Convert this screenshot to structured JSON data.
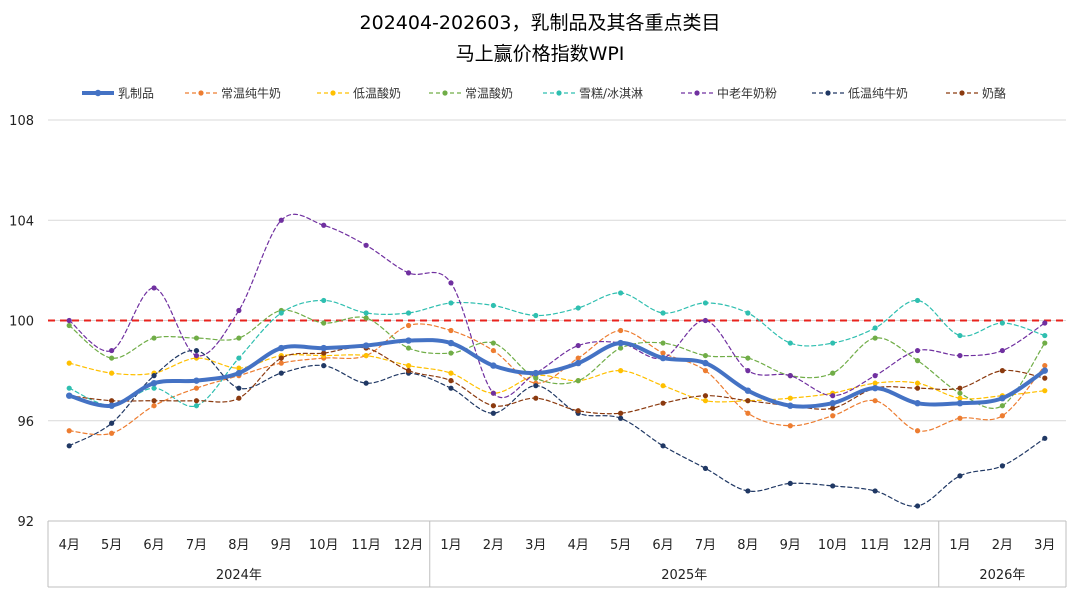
{
  "chart_data": {
    "type": "line",
    "title": "202404-202603，乳制品及其各重点类目",
    "subtitle": "马上赢价格指数WPI",
    "categories": [
      "4月",
      "5月",
      "6月",
      "7月",
      "8月",
      "9月",
      "10月",
      "11月",
      "12月",
      "1月",
      "2月",
      "3月",
      "4月",
      "5月",
      "6月",
      "7月",
      "8月",
      "9月",
      "10月",
      "11月",
      "12月",
      "1月",
      "2月",
      "3月"
    ],
    "year_groups": [
      {
        "label": "2024年",
        "count": 9
      },
      {
        "label": "2025年",
        "count": 12
      },
      {
        "label": "2026年",
        "count": 3
      }
    ],
    "ylim": [
      92,
      108
    ],
    "yticks": [
      "92",
      "96",
      "100",
      "104",
      "108"
    ],
    "reference_line": {
      "value": 100,
      "color": "#e8231d"
    },
    "grid": true,
    "legend_position": "top",
    "series": [
      {
        "name": "乳制品",
        "color": "#4472c4",
        "main": true,
        "values": [
          97.0,
          96.6,
          97.5,
          97.6,
          97.9,
          98.9,
          98.9,
          99.0,
          99.2,
          99.1,
          98.2,
          97.9,
          98.3,
          99.1,
          98.5,
          98.3,
          97.2,
          96.6,
          96.7,
          97.3,
          96.7,
          96.7,
          96.9,
          98.0
        ]
      },
      {
        "name": "常温纯牛奶",
        "color": "#ed7d31",
        "values": [
          95.6,
          95.5,
          96.6,
          97.3,
          97.8,
          98.3,
          98.5,
          98.6,
          99.8,
          99.6,
          98.8,
          97.5,
          98.5,
          99.6,
          98.7,
          98.0,
          96.3,
          95.8,
          96.2,
          96.8,
          95.6,
          96.1,
          96.2,
          98.2
        ]
      },
      {
        "name": "低温酸奶",
        "color": "#ffc000",
        "values": [
          98.3,
          97.9,
          97.9,
          98.5,
          98.1,
          98.6,
          98.6,
          98.6,
          98.2,
          97.9,
          97.1,
          97.8,
          97.6,
          98.0,
          97.4,
          96.8,
          96.8,
          96.9,
          97.1,
          97.5,
          97.5,
          96.9,
          97.0,
          97.2
        ]
      },
      {
        "name": "常温酸奶",
        "color": "#70ad47",
        "values": [
          99.8,
          98.5,
          99.3,
          99.3,
          99.3,
          100.4,
          99.9,
          100.1,
          98.9,
          98.7,
          99.1,
          97.7,
          97.6,
          98.9,
          99.1,
          98.6,
          98.5,
          97.8,
          97.9,
          99.3,
          98.4,
          97.1,
          96.6,
          99.1
        ]
      },
      {
        "name": "雪糕/冰淇淋",
        "color": "#2fbfb0",
        "values": [
          97.3,
          96.6,
          97.3,
          96.6,
          98.5,
          100.3,
          100.8,
          100.3,
          100.3,
          100.7,
          100.6,
          100.2,
          100.5,
          101.1,
          100.3,
          100.7,
          100.3,
          99.1,
          99.1,
          99.7,
          100.8,
          99.4,
          99.9,
          99.4
        ]
      },
      {
        "name": "中老年奶粉",
        "color": "#7030a0",
        "values": [
          100.0,
          98.8,
          101.3,
          98.6,
          100.4,
          104.0,
          103.8,
          103.0,
          101.9,
          101.5,
          97.1,
          97.9,
          99.0,
          99.1,
          98.5,
          100.0,
          98.0,
          97.8,
          97.0,
          97.8,
          98.8,
          98.6,
          98.8,
          99.9
        ]
      },
      {
        "name": "低温纯牛奶",
        "color": "#203864",
        "values": [
          95.0,
          95.9,
          97.8,
          98.8,
          97.3,
          97.9,
          98.2,
          97.5,
          97.9,
          97.3,
          96.3,
          97.4,
          96.3,
          96.1,
          95.0,
          94.1,
          93.2,
          93.5,
          93.4,
          93.2,
          92.6,
          93.8,
          94.2,
          95.3
        ]
      },
      {
        "name": "奶酪",
        "color": "#8b3a0f",
        "values": [
          97.0,
          96.8,
          96.8,
          96.8,
          96.9,
          98.5,
          98.7,
          98.9,
          98.0,
          97.6,
          96.6,
          96.9,
          96.4,
          96.3,
          96.7,
          97.0,
          96.8,
          96.6,
          96.5,
          97.3,
          97.3,
          97.3,
          98.0,
          97.7
        ]
      }
    ]
  }
}
